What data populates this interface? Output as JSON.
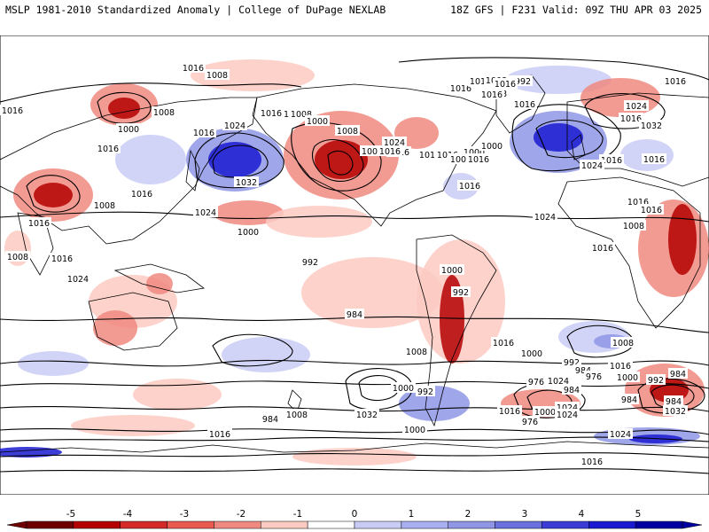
{
  "header": {
    "title_left": "MSLP 1981-2010 Standardized Anomaly | College of DuPage NEXLAB",
    "title_right": "18Z GFS | F231 Valid: 09Z THU APR 03 2025"
  },
  "colors": {
    "strong_negative": "#b40000",
    "negative": "#f08a80",
    "weak_negative": "#fbcac2",
    "weak_positive": "#c9cdf5",
    "positive": "#8f96e6",
    "strong_positive": "#1a1ad0",
    "isobar": "#000000",
    "coastline": "#000000"
  },
  "colorbar": {
    "tick_labels": [
      "-5",
      "-4",
      "-3",
      "-2",
      "-1",
      "0",
      "1",
      "2",
      "3",
      "4",
      "5"
    ],
    "colors": [
      "#6e0000",
      "#b40000",
      "#d42a2a",
      "#ea5a50",
      "#f08a80",
      "#fbcac2",
      "#ffffff",
      "#c9cdf5",
      "#a9aff0",
      "#8f96e6",
      "#6a70de",
      "#3c3cd6",
      "#1a1ad0",
      "#0000a0"
    ]
  },
  "isobar_labels": [
    "1016",
    "1008",
    "1016",
    "1000",
    "1008",
    "1016",
    "1016",
    "1024",
    "1032",
    "1016",
    "1008",
    "1000",
    "1008",
    "1016",
    "1016",
    "1016",
    "1008",
    "992",
    "1000",
    "1016",
    "1016",
    "1008",
    "1016",
    "1000",
    "1016",
    "1024",
    "1032",
    "1016",
    "1016",
    "1024",
    "1008",
    "1000",
    "1016",
    "1024",
    "1016",
    "1016",
    "1008",
    "1016",
    "1016",
    "1016",
    "1024",
    "1016",
    "1008",
    "1016",
    "1016",
    "1016",
    "1016",
    "1008",
    "1016",
    "1024",
    "1008",
    "1016",
    "1024",
    "1000",
    "992",
    "984",
    "1008",
    "1000",
    "992",
    "1016",
    "1000",
    "992",
    "984",
    "976",
    "1024",
    "1008",
    "1016",
    "1000",
    "992",
    "984",
    "1016",
    "1024",
    "976",
    "984",
    "1032",
    "984",
    "1024",
    "1016",
    "1000",
    "976",
    "1024",
    "984",
    "992",
    "1000",
    "1032",
    "1000",
    "1008",
    "984",
    "1016"
  ]
}
